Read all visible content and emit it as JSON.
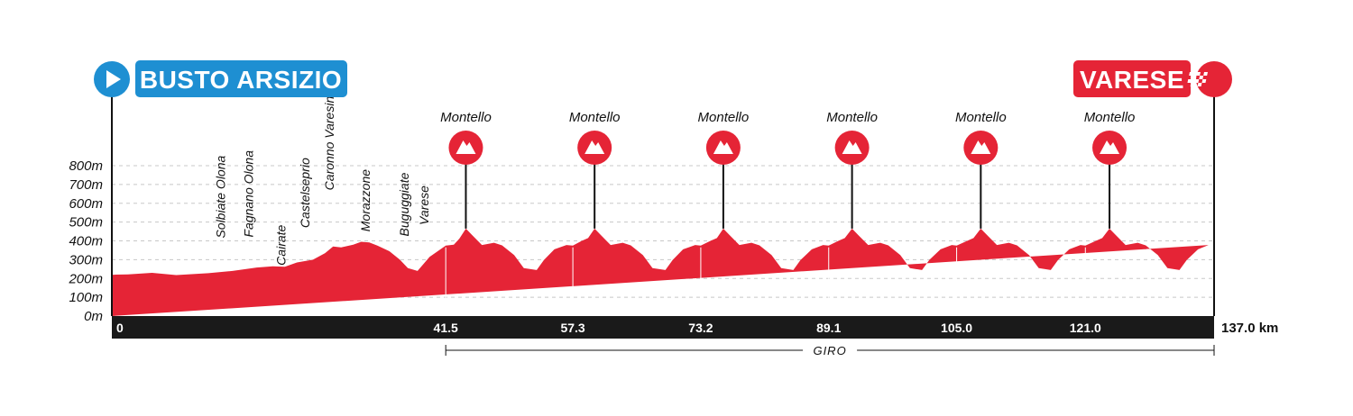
{
  "chart_data": {
    "type": "area",
    "unit_x": "km",
    "colors": {
      "profile": "#e52436",
      "start": "#1e8fd2",
      "finish": "#e52436",
      "bar": "#1a1a1a"
    },
    "start": {
      "name": "BUSTO ARSIZIO",
      "icon": "play-icon"
    },
    "finish": {
      "name": "VARESE",
      "icon": "checkered-flag-icon"
    },
    "y_ticks": [
      "0m",
      "100m",
      "200m",
      "300m",
      "400m",
      "500m",
      "600m",
      "700m",
      "800m"
    ],
    "ylim": [
      0,
      800
    ],
    "xlim": [
      0,
      137.0
    ],
    "km_labels": [
      {
        "km": 0,
        "label": "0"
      },
      {
        "km": 41.5,
        "label": "41.5"
      },
      {
        "km": 57.3,
        "label": "57.3"
      },
      {
        "km": 73.2,
        "label": "73.2"
      },
      {
        "km": 89.1,
        "label": "89.1"
      },
      {
        "km": 105.0,
        "label": "105.0"
      },
      {
        "km": 121.0,
        "label": "121.0"
      }
    ],
    "total_label": "137.0 km",
    "circuit": {
      "label": "GIRO",
      "from_km": 41.5,
      "to_km": 137.0
    },
    "towns": [
      {
        "name": "Solbiate Olona",
        "km": 13.5,
        "top": 395
      },
      {
        "name": "Fagnano Olona",
        "km": 17.0,
        "top": 400
      },
      {
        "name": "Cairate",
        "km": 21.0,
        "top": 250
      },
      {
        "name": "Castelseprio",
        "km": 24.0,
        "top": 450
      },
      {
        "name": "Caronno Varesino",
        "km": 27.0,
        "top": 650
      },
      {
        "name": "Morazzone",
        "km": 31.5,
        "top": 430
      },
      {
        "name": "Buguggiate",
        "km": 36.3,
        "top": 405
      },
      {
        "name": "Varese",
        "km": 38.8,
        "top": 465
      }
    ],
    "climbs": [
      {
        "name": "Montello",
        "km": 44.0
      },
      {
        "name": "Montello",
        "km": 60.0
      },
      {
        "name": "Montello",
        "km": 76.0
      },
      {
        "name": "Montello",
        "km": 92.0
      },
      {
        "name": "Montello",
        "km": 108.0
      },
      {
        "name": "Montello",
        "km": 124.0
      }
    ],
    "profile": {
      "x": [
        0,
        2,
        5,
        8,
        12,
        15,
        18,
        20,
        21.5,
        23,
        25,
        26.5,
        27.5,
        28.5,
        30,
        31,
        32,
        33,
        34.5,
        35.8,
        36.8,
        38,
        39.5,
        41.5,
        42.5,
        43.2,
        44,
        44.8,
        46,
        47.5,
        48.5,
        50,
        51.2,
        52.8,
        53.7,
        55,
        56.5,
        57.3,
        58.4,
        59.2,
        60,
        60.8,
        62,
        63.5,
        64.5,
        66,
        67.2,
        68.8,
        69.7,
        71,
        72.5,
        73.2,
        74.4,
        75.2,
        76,
        76.8,
        78,
        79.5,
        80.5,
        82,
        83.2,
        84.7,
        85.6,
        87,
        88.4,
        89.1,
        90.3,
        91.1,
        92,
        92.8,
        94,
        95.5,
        96.5,
        98,
        99.2,
        100.7,
        101.6,
        103,
        104.4,
        105.0,
        106.3,
        107.1,
        108,
        108.8,
        110,
        111.5,
        112.5,
        114,
        115.2,
        116.7,
        117.6,
        119,
        120.4,
        121.0,
        122.3,
        123.1,
        124,
        124.8,
        126,
        127.5,
        128.5,
        130,
        131.2,
        132.7,
        133.6,
        135,
        136.3,
        137.0
      ],
      "elev": [
        220,
        222,
        230,
        218,
        228,
        240,
        258,
        265,
        262,
        285,
        300,
        335,
        370,
        365,
        380,
        395,
        392,
        375,
        345,
        300,
        255,
        240,
        315,
        375,
        380,
        412,
        465,
        430,
        378,
        390,
        376,
        325,
        255,
        245,
        298,
        355,
        378,
        375,
        400,
        415,
        465,
        430,
        378,
        390,
        376,
        325,
        255,
        245,
        298,
        355,
        378,
        375,
        400,
        415,
        465,
        430,
        378,
        390,
        376,
        325,
        255,
        245,
        298,
        355,
        378,
        375,
        400,
        415,
        465,
        430,
        378,
        390,
        376,
        325,
        255,
        245,
        298,
        355,
        378,
        375,
        400,
        415,
        465,
        430,
        378,
        390,
        376,
        325,
        255,
        245,
        298,
        355,
        378,
        375,
        400,
        415,
        465,
        430,
        378,
        390,
        376,
        325,
        255,
        245,
        298,
        355,
        378
      ]
    }
  }
}
